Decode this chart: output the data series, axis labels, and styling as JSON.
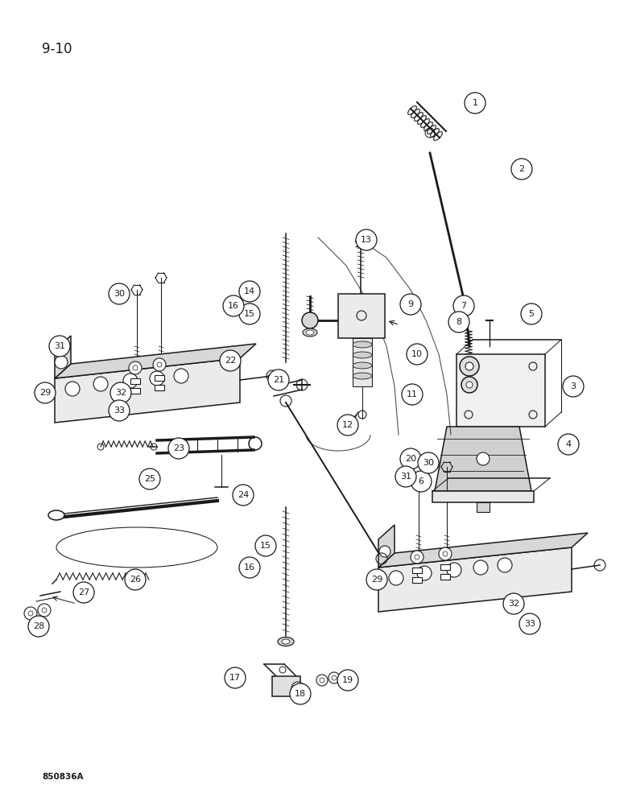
{
  "page_label": "9-10",
  "figure_label": "850836A",
  "bg": "#ffffff",
  "lc": "#1a1a1a",
  "callout_r": 0.022,
  "callout_fs": 8,
  "page_fs": 12,
  "fig_fs": 7.5
}
